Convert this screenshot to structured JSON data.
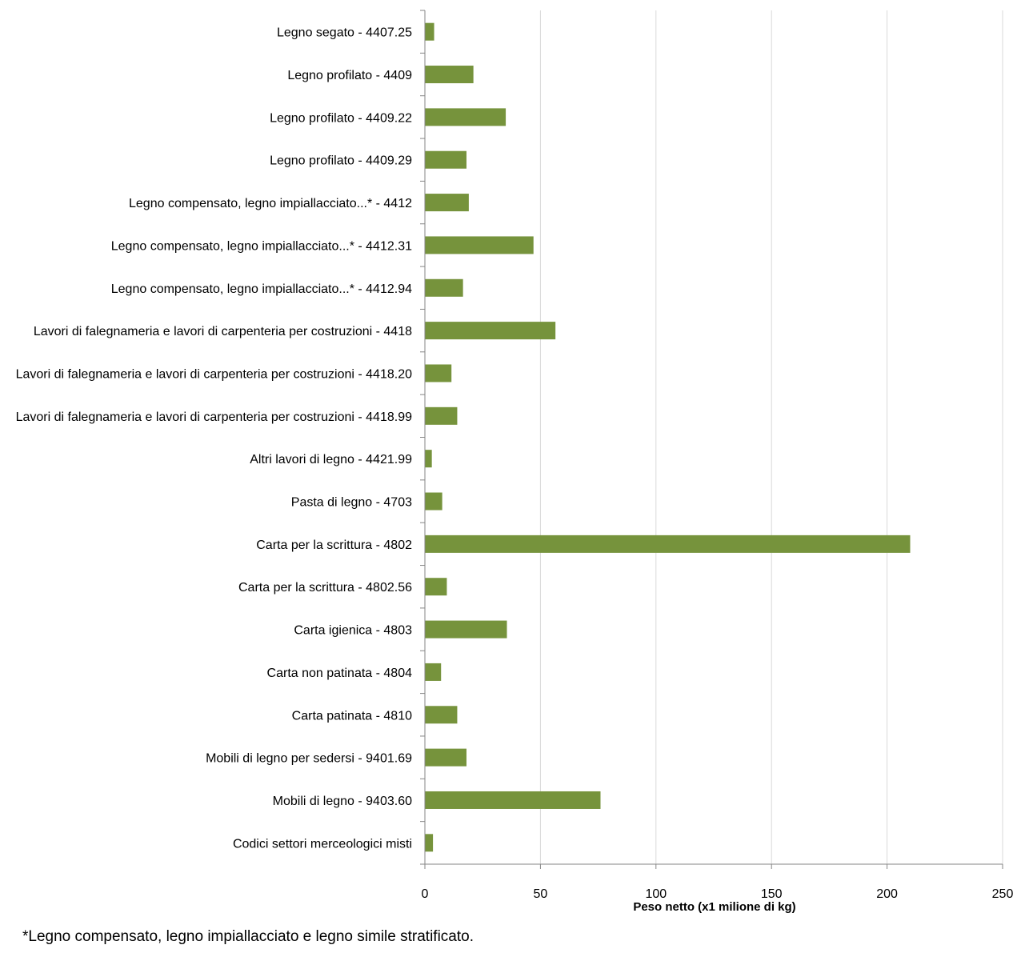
{
  "chart_data": {
    "type": "bar",
    "orientation": "horizontal",
    "categories": [
      "Legno segato - 4407.25",
      "Legno profilato - 4409",
      "Legno profilato - 4409.22",
      "Legno profilato - 4409.29",
      "Legno compensato, legno impiallacciato...* - 4412",
      "Legno compensato, legno impiallacciato...* - 4412.31",
      "Legno compensato, legno impiallacciato...* - 4412.94",
      "Lavori di falegnameria e lavori di carpenteria per costruzioni - 4418",
      "Lavori di falegnameria e lavori di carpenteria per costruzioni - 4418.20",
      "Lavori di falegnameria e lavori di carpenteria per costruzioni - 4418.99",
      "Altri lavori di legno - 4421.99",
      "Pasta di legno - 4703",
      "Carta per la scrittura - 4802",
      "Carta per la scrittura - 4802.56",
      "Carta igienica - 4803",
      "Carta non patinata - 4804",
      "Carta patinata - 4810",
      "Mobili di legno per sedersi - 9401.69",
      "Mobili di legno - 9403.60",
      "Codici settori merceologici misti"
    ],
    "values": [
      4,
      21,
      35,
      18,
      19,
      47,
      16.5,
      56.5,
      11.5,
      14,
      3,
      7.5,
      210,
      9.5,
      35.5,
      7,
      14,
      18,
      76,
      3.5
    ],
    "xlabel": "Peso netto  (x1 milione di kg)",
    "xlim": [
      0,
      250
    ],
    "xticks": [
      0,
      50,
      100,
      150,
      200,
      250
    ],
    "grid": "vertical",
    "bar_color": "#76933C",
    "grid_color": "#D9D9D9",
    "axis_color": "#868686"
  },
  "footnote": "*Legno compensato, legno impiallacciato e legno simile stratificato."
}
